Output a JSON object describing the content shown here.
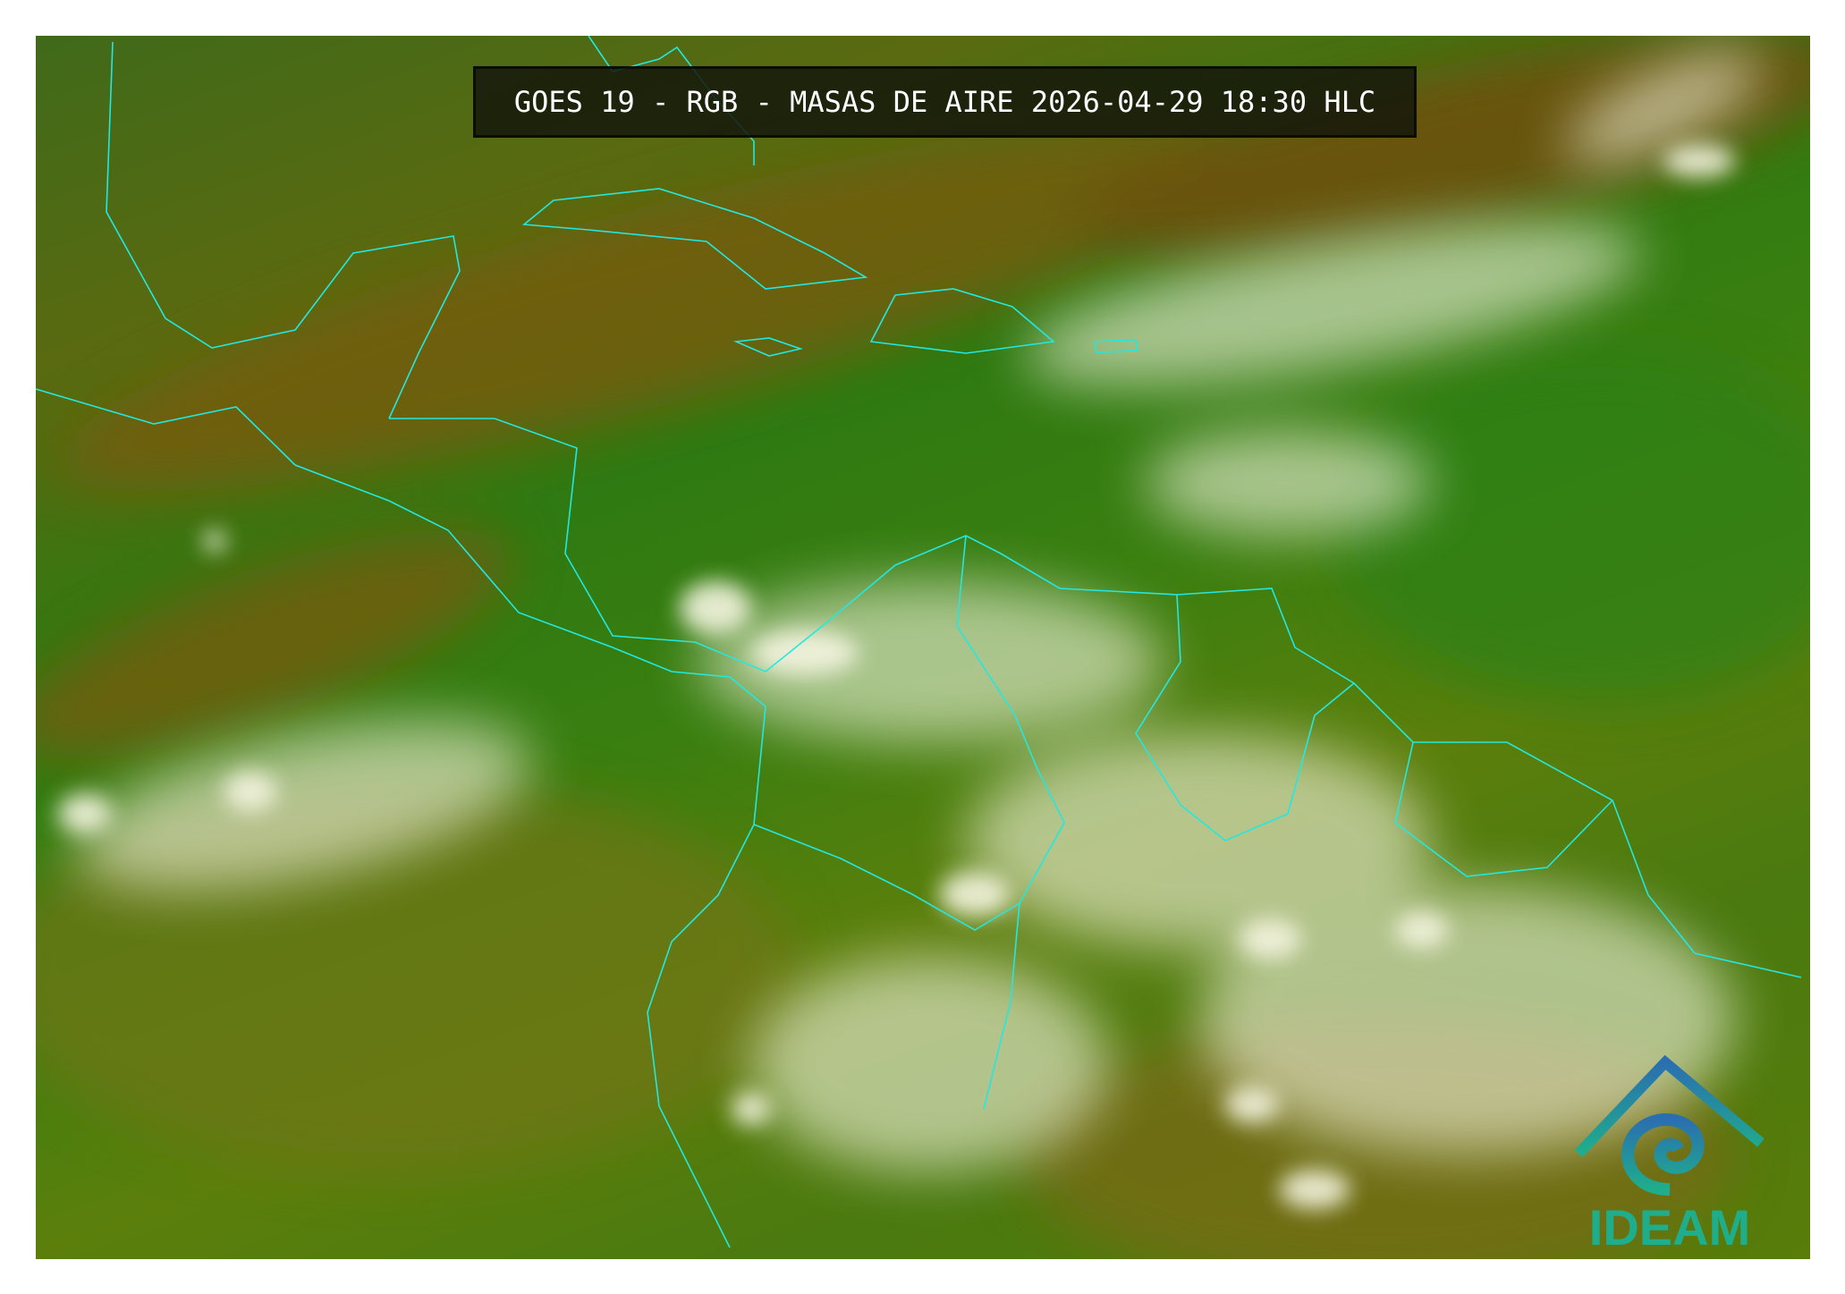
{
  "title": "GOES 19 - RGB - MASAS DE AIRE 2026-04-29 18:30 HLC",
  "logo": {
    "text": "IDEAM",
    "colors": [
      "#2a6fb0",
      "#1fae8c"
    ]
  },
  "colors": {
    "coastline": "#22e8e0",
    "cloud": "#f4f4e0",
    "moist_airmass": "#2f7a12",
    "dry_airmass": "#6a5a10"
  }
}
